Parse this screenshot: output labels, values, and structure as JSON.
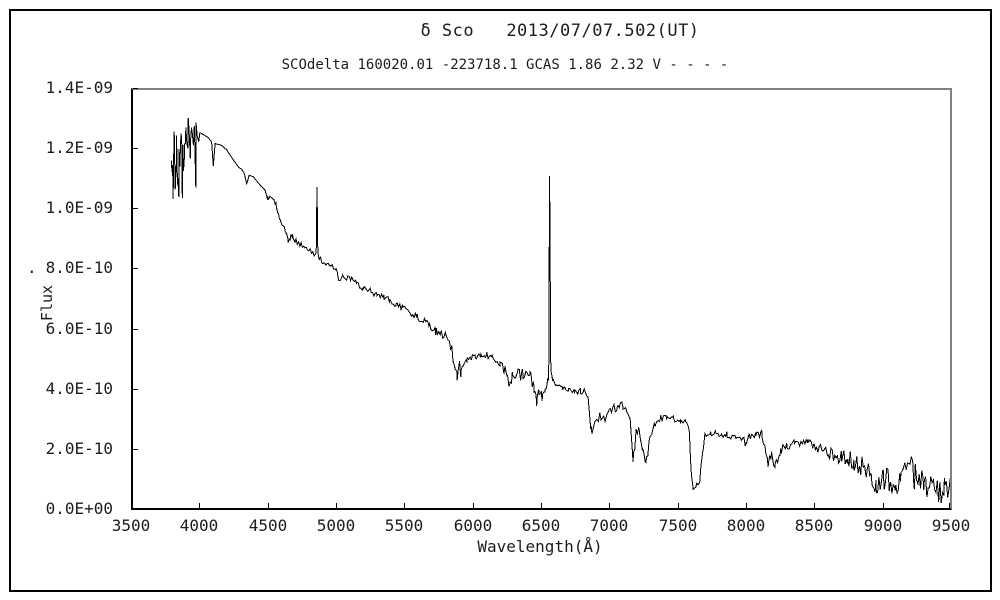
{
  "figure": {
    "title": "δ Sco   2013/07/07.502(UT)",
    "subtitle": "SCOdelta 160020.01 -223718.1 GCAS 1.86 2.32 V - - - -",
    "colors": {
      "background": "#ffffff",
      "curve": "#000000",
      "axis": "#000000",
      "frame_shadow": "#808080",
      "outer_border": "#000000",
      "text": "#1c1c1c"
    }
  },
  "chart_data": {
    "type": "line",
    "title": "δ Sco   2013/07/07.502(UT)",
    "subtitle": "SCOdelta 160020.01 -223718.1 GCAS 1.86 2.32 V - - - -",
    "xlabel": "Wavelength(Å)",
    "ylabel": "Flux",
    "ylabel_dot": ".",
    "xlim": [
      3500,
      9500
    ],
    "ylim_flux_1e10": [
      0,
      14
    ],
    "grid": false,
    "legend": false,
    "x_ticks": [
      3500,
      4000,
      4500,
      5000,
      5500,
      6000,
      6500,
      7000,
      7500,
      8000,
      8500,
      9000,
      9500
    ],
    "y_tick_values_1e10": [
      0,
      2,
      4,
      6,
      8,
      10,
      12,
      14
    ],
    "y_tick_labels": [
      "0.0E+00",
      "2.0E-10",
      "4.0E-10",
      "6.0E-10",
      "8.0E-10",
      "1.0E-09",
      "1.2E-09",
      "1.4E-09"
    ],
    "emission_spikes_wavelength_peak_1e10": [
      [
        4861,
        10.7
      ],
      [
        6563,
        11.07
      ]
    ],
    "series": [
      {
        "name": "spectrum",
        "units": "flux values in 1e-10",
        "points": [
          [
            3795,
            11.2
          ],
          [
            3800,
            11.9
          ],
          [
            3808,
            10.6
          ],
          [
            3816,
            12.1
          ],
          [
            3824,
            11.2
          ],
          [
            3832,
            12.2
          ],
          [
            3840,
            11.0
          ],
          [
            3850,
            12.3
          ],
          [
            3858,
            11.5
          ],
          [
            3866,
            12.4
          ],
          [
            3875,
            11.8
          ],
          [
            3884,
            12.5
          ],
          [
            3893,
            11.9
          ],
          [
            3901,
            12.7
          ],
          [
            3910,
            12.2
          ],
          [
            3917,
            12.9
          ],
          [
            3925,
            12.5
          ],
          [
            3934,
            12.75
          ],
          [
            3943,
            12.45
          ],
          [
            3952,
            12.65
          ],
          [
            3963,
            12.3
          ],
          [
            3974,
            12.6
          ],
          [
            3990,
            12.55
          ],
          [
            4030,
            12.45
          ],
          [
            4065,
            12.35
          ],
          [
            4090,
            12.2
          ],
          [
            4102,
            11.4
          ],
          [
            4115,
            12.15
          ],
          [
            4160,
            12.1
          ],
          [
            4200,
            11.95
          ],
          [
            4250,
            11.6
          ],
          [
            4290,
            11.35
          ],
          [
            4310,
            11.3
          ],
          [
            4330,
            11.15
          ],
          [
            4346,
            10.8
          ],
          [
            4365,
            11.1
          ],
          [
            4395,
            11.05
          ],
          [
            4430,
            10.85
          ],
          [
            4460,
            10.7
          ],
          [
            4481,
            10.6
          ],
          [
            4502,
            10.25
          ],
          [
            4517,
            10.4
          ],
          [
            4540,
            10.3
          ],
          [
            4560,
            10.1
          ],
          [
            4585,
            9.75
          ],
          [
            4605,
            9.45
          ],
          [
            4630,
            9.2
          ],
          [
            4649,
            8.9
          ],
          [
            4665,
            9.05
          ],
          [
            4680,
            9.1
          ],
          [
            4700,
            8.95
          ],
          [
            4717,
            8.88
          ],
          [
            4740,
            8.8
          ],
          [
            4760,
            8.7
          ],
          [
            4790,
            8.6
          ],
          [
            4812,
            8.55
          ],
          [
            4840,
            8.45
          ],
          [
            4855,
            8.5
          ],
          [
            4861,
            10.7
          ],
          [
            4867,
            8.6
          ],
          [
            4875,
            8.3
          ],
          [
            4885,
            8.28
          ],
          [
            4905,
            8.25
          ],
          [
            4930,
            8.2
          ],
          [
            4960,
            8.1
          ],
          [
            4995,
            8.0
          ],
          [
            5012,
            7.75
          ],
          [
            5030,
            7.62
          ],
          [
            5055,
            7.72
          ],
          [
            5103,
            7.68
          ],
          [
            5150,
            7.5
          ],
          [
            5200,
            7.35
          ],
          [
            5250,
            7.25
          ],
          [
            5300,
            7.12
          ],
          [
            5350,
            7.05
          ],
          [
            5395,
            6.95
          ],
          [
            5440,
            6.8
          ],
          [
            5490,
            6.68
          ],
          [
            5540,
            6.55
          ],
          [
            5595,
            6.4
          ],
          [
            5640,
            6.25
          ],
          [
            5680,
            6.12
          ],
          [
            5700,
            5.95
          ],
          [
            5730,
            5.92
          ],
          [
            5762,
            5.85
          ],
          [
            5800,
            5.7
          ],
          [
            5835,
            5.5
          ],
          [
            5858,
            5.0
          ],
          [
            5872,
            4.55
          ],
          [
            5886,
            4.42
          ],
          [
            5902,
            4.8
          ],
          [
            5916,
            4.5
          ],
          [
            5932,
            4.88
          ],
          [
            5958,
            5.0
          ],
          [
            5985,
            4.97
          ],
          [
            6020,
            5.12
          ],
          [
            6060,
            5.08
          ],
          [
            6100,
            5.12
          ],
          [
            6140,
            5.05
          ],
          [
            6170,
            4.95
          ],
          [
            6200,
            4.8
          ],
          [
            6230,
            4.65
          ],
          [
            6252,
            4.5
          ],
          [
            6268,
            4.06
          ],
          [
            6290,
            4.45
          ],
          [
            6326,
            4.52
          ],
          [
            6365,
            4.45
          ],
          [
            6420,
            4.36
          ],
          [
            6450,
            4.1
          ],
          [
            6468,
            3.65
          ],
          [
            6487,
            3.95
          ],
          [
            6508,
            3.72
          ],
          [
            6528,
            3.88
          ],
          [
            6545,
            4.2
          ],
          [
            6556,
            4.35
          ],
          [
            6563,
            11.07
          ],
          [
            6572,
            4.6
          ],
          [
            6585,
            4.3
          ],
          [
            6618,
            4.1
          ],
          [
            6660,
            4.05
          ],
          [
            6700,
            4.0
          ],
          [
            6745,
            3.95
          ],
          [
            6790,
            3.9
          ],
          [
            6825,
            3.85
          ],
          [
            6850,
            3.6
          ],
          [
            6868,
            2.56
          ],
          [
            6888,
            2.75
          ],
          [
            6905,
            2.95
          ],
          [
            6930,
            3.1
          ],
          [
            6958,
            2.95
          ],
          [
            6980,
            3.15
          ],
          [
            7005,
            3.25
          ],
          [
            7035,
            3.35
          ],
          [
            7060,
            3.4
          ],
          [
            7100,
            3.46
          ],
          [
            7130,
            3.3
          ],
          [
            7152,
            3.05
          ],
          [
            7174,
            1.75
          ],
          [
            7196,
            2.5
          ],
          [
            7218,
            2.73
          ],
          [
            7242,
            2.0
          ],
          [
            7268,
            1.55
          ],
          [
            7300,
            2.4
          ],
          [
            7335,
            2.8
          ],
          [
            7372,
            3.0
          ],
          [
            7420,
            3.05
          ],
          [
            7470,
            3.0
          ],
          [
            7520,
            2.93
          ],
          [
            7556,
            2.9
          ],
          [
            7584,
            2.65
          ],
          [
            7600,
            1.15
          ],
          [
            7614,
            0.73
          ],
          [
            7640,
            0.8
          ],
          [
            7662,
            0.95
          ],
          [
            7680,
            1.85
          ],
          [
            7700,
            2.45
          ],
          [
            7740,
            2.5
          ],
          [
            7780,
            2.55
          ],
          [
            7822,
            2.5
          ],
          [
            7860,
            2.46
          ],
          [
            7905,
            2.42
          ],
          [
            7952,
            2.4
          ],
          [
            8001,
            2.2
          ],
          [
            8030,
            2.45
          ],
          [
            8072,
            2.44
          ],
          [
            8115,
            2.46
          ],
          [
            8140,
            1.9
          ],
          [
            8162,
            1.52
          ],
          [
            8186,
            1.75
          ],
          [
            8214,
            1.48
          ],
          [
            8252,
            1.95
          ],
          [
            8300,
            2.1
          ],
          [
            8352,
            2.18
          ],
          [
            8400,
            2.2
          ],
          [
            8452,
            2.25
          ],
          [
            8506,
            2.1
          ],
          [
            8545,
            1.97
          ],
          [
            8600,
            1.86
          ],
          [
            8640,
            1.8
          ],
          [
            8700,
            1.73
          ],
          [
            8742,
            1.7
          ],
          [
            8790,
            1.56
          ],
          [
            8836,
            1.46
          ],
          [
            8880,
            1.3
          ],
          [
            8922,
            1.1
          ],
          [
            8952,
            0.92
          ],
          [
            9005,
            0.96
          ],
          [
            9050,
            1.0
          ],
          [
            9092,
            0.9
          ],
          [
            9130,
            0.95
          ],
          [
            9162,
            1.1
          ],
          [
            9200,
            1.5
          ],
          [
            9232,
            1.1
          ],
          [
            9255,
            1.15
          ],
          [
            9300,
            0.95
          ],
          [
            9352,
            0.85
          ],
          [
            9400,
            0.72
          ],
          [
            9452,
            0.55
          ],
          [
            9495,
            0.45
          ]
        ]
      }
    ],
    "noise_profile_1e10": [
      [
        3795,
        0.5
      ],
      [
        3990,
        0.5
      ],
      [
        4005,
        0.22
      ],
      [
        4200,
        0.2
      ],
      [
        4450,
        0.15
      ],
      [
        4700,
        0.1
      ],
      [
        4900,
        0.1
      ],
      [
        5300,
        0.1
      ],
      [
        5700,
        0.12
      ],
      [
        5860,
        0.22
      ],
      [
        5960,
        0.12
      ],
      [
        6150,
        0.12
      ],
      [
        6280,
        0.18
      ],
      [
        6460,
        0.25
      ],
      [
        6545,
        0.1
      ],
      [
        6620,
        0.08
      ],
      [
        6860,
        0.18
      ],
      [
        7000,
        0.12
      ],
      [
        7160,
        0.2
      ],
      [
        7350,
        0.12
      ],
      [
        7600,
        0.08
      ],
      [
        7750,
        0.1
      ],
      [
        8130,
        0.18
      ],
      [
        8260,
        0.15
      ],
      [
        8450,
        0.12
      ],
      [
        8600,
        0.2
      ],
      [
        8800,
        0.3
      ],
      [
        8950,
        0.42
      ],
      [
        9100,
        0.45
      ],
      [
        9300,
        0.5
      ],
      [
        9500,
        0.6
      ]
    ]
  }
}
